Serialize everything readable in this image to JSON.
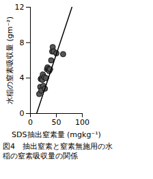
{
  "chart_data": {
    "type": "scatter",
    "title": "図4　抽出窒素と窒素無施用の水稲の窒素吸収量の関係",
    "x_label": "SDS抽出窒素量 (mgkg⁻¹)",
    "y_label": "水稲の窒素吸収量 (gm⁻²)",
    "xlim": [
      0,
      100
    ],
    "xticks": [
      0,
      50,
      100
    ],
    "ylim": [
      0,
      12
    ],
    "yticks": [
      0,
      4,
      8,
      12
    ],
    "grid": false,
    "series": [
      {
        "type": "scatter",
        "marker": "circle",
        "color": "#555555",
        "x": [
          17,
          19,
          20,
          21,
          22,
          23,
          24,
          25,
          27,
          28,
          30,
          32,
          33,
          35,
          36,
          38,
          40,
          42,
          43,
          45,
          50,
          63
        ],
        "values": [
          2.2,
          3.0,
          3.9,
          2.6,
          4.0,
          3.8,
          4.4,
          3.1,
          4.1,
          2.8,
          4.0,
          5.0,
          5.2,
          5.0,
          4.8,
          5.0,
          6.0,
          7.0,
          7.5,
          7.0,
          6.8,
          6.7
        ]
      },
      {
        "type": "line",
        "line_style": "solid",
        "color": "#000000",
        "x": [
          12,
          80
        ],
        "values": [
          0,
          12
        ]
      }
    ]
  }
}
